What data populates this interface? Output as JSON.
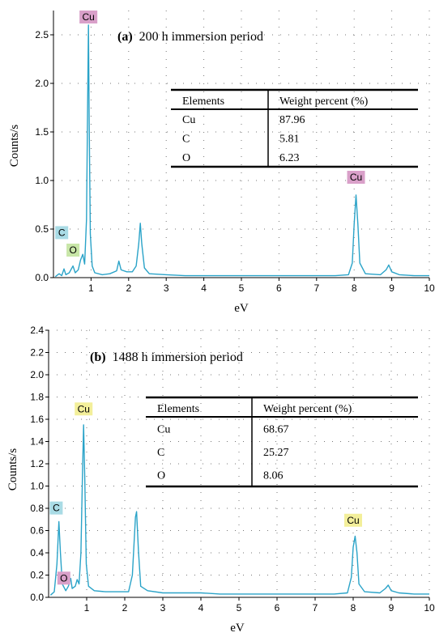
{
  "chart_data": [
    {
      "type": "line",
      "panel_label": "(a)",
      "title": "200 h immersion period",
      "xlabel": "eV",
      "ylabel": "Counts/s",
      "xlim": [
        0,
        10
      ],
      "ylim": [
        0,
        2.75
      ],
      "xticks": [
        1,
        2,
        3,
        4,
        5,
        6,
        7,
        8,
        9,
        10
      ],
      "yticks": [
        0.0,
        0.5,
        1.0,
        1.5,
        2.0,
        2.5
      ],
      "ytick_labels": [
        "0.0",
        "0.5",
        "1.0",
        "1.5",
        "2.0",
        "2.5"
      ],
      "line_color": "#2aa3c8",
      "spectrum": [
        [
          0.05,
          0.01
        ],
        [
          0.15,
          0.04
        ],
        [
          0.22,
          0.02
        ],
        [
          0.28,
          0.09
        ],
        [
          0.33,
          0.03
        ],
        [
          0.42,
          0.05
        ],
        [
          0.52,
          0.12
        ],
        [
          0.58,
          0.05
        ],
        [
          0.66,
          0.08
        ],
        [
          0.72,
          0.18
        ],
        [
          0.78,
          0.24
        ],
        [
          0.83,
          0.14
        ],
        [
          0.88,
          0.6
        ],
        [
          0.91,
          1.8
        ],
        [
          0.93,
          2.6
        ],
        [
          0.95,
          1.6
        ],
        [
          0.98,
          0.45
        ],
        [
          1.03,
          0.12
        ],
        [
          1.1,
          0.05
        ],
        [
          1.3,
          0.03
        ],
        [
          1.5,
          0.04
        ],
        [
          1.68,
          0.07
        ],
        [
          1.74,
          0.17
        ],
        [
          1.8,
          0.08
        ],
        [
          1.95,
          0.06
        ],
        [
          2.1,
          0.06
        ],
        [
          2.2,
          0.12
        ],
        [
          2.27,
          0.35
        ],
        [
          2.31,
          0.56
        ],
        [
          2.35,
          0.35
        ],
        [
          2.42,
          0.1
        ],
        [
          2.55,
          0.04
        ],
        [
          3.0,
          0.03
        ],
        [
          3.5,
          0.02
        ],
        [
          4.0,
          0.02
        ],
        [
          4.5,
          0.02
        ],
        [
          5.0,
          0.02
        ],
        [
          5.5,
          0.02
        ],
        [
          6.0,
          0.02
        ],
        [
          6.5,
          0.02
        ],
        [
          7.0,
          0.02
        ],
        [
          7.5,
          0.02
        ],
        [
          7.85,
          0.03
        ],
        [
          7.95,
          0.15
        ],
        [
          8.0,
          0.55
        ],
        [
          8.05,
          0.85
        ],
        [
          8.1,
          0.55
        ],
        [
          8.15,
          0.15
        ],
        [
          8.3,
          0.04
        ],
        [
          8.7,
          0.03
        ],
        [
          8.85,
          0.08
        ],
        [
          8.92,
          0.13
        ],
        [
          9.0,
          0.06
        ],
        [
          9.2,
          0.03
        ],
        [
          9.6,
          0.02
        ],
        [
          10.0,
          0.02
        ]
      ],
      "peak_labels": [
        {
          "text": "Cu",
          "x": 0.93,
          "y": 2.6,
          "bg": "#d9a0c9"
        },
        {
          "text": "C",
          "x": 0.22,
          "y": 0.38,
          "bg": "#a9dbe5"
        },
        {
          "text": "O",
          "x": 0.52,
          "y": 0.2,
          "bg": "#c8e6a8"
        },
        {
          "text": "Cu",
          "x": 8.05,
          "y": 0.95,
          "bg": "#d9a0c9"
        }
      ],
      "table": {
        "headers": [
          "Elements",
          "Weight percent (%)"
        ],
        "rows": [
          [
            "Cu",
            "87.96"
          ],
          [
            "C",
            "5.81"
          ],
          [
            "O",
            "6.23"
          ]
        ]
      }
    },
    {
      "type": "line",
      "panel_label": "(b)",
      "title": "1488 h immersion period",
      "xlabel": "eV",
      "ylabel": "Counts/s",
      "xlim": [
        0,
        10
      ],
      "ylim": [
        0,
        2.4
      ],
      "xticks": [
        1,
        2,
        3,
        4,
        5,
        6,
        7,
        8,
        9,
        10
      ],
      "yticks": [
        0.0,
        0.2,
        0.4,
        0.6,
        0.8,
        1.0,
        1.2,
        1.4,
        1.6,
        1.8,
        2.0,
        2.2,
        2.4
      ],
      "ytick_labels": [
        "0.0",
        "0.2",
        "0.4",
        "0.6",
        "0.8",
        "1.0",
        "1.2",
        "1.4",
        "1.6",
        "1.8",
        "2.0",
        "2.2",
        "2.4"
      ],
      "line_color": "#2aa3c8",
      "spectrum": [
        [
          0.05,
          0.02
        ],
        [
          0.15,
          0.05
        ],
        [
          0.22,
          0.3
        ],
        [
          0.27,
          0.68
        ],
        [
          0.31,
          0.4
        ],
        [
          0.36,
          0.12
        ],
        [
          0.45,
          0.06
        ],
        [
          0.52,
          0.1
        ],
        [
          0.58,
          0.17
        ],
        [
          0.62,
          0.08
        ],
        [
          0.7,
          0.1
        ],
        [
          0.75,
          0.16
        ],
        [
          0.8,
          0.12
        ],
        [
          0.85,
          0.4
        ],
        [
          0.89,
          1.1
        ],
        [
          0.92,
          1.55
        ],
        [
          0.95,
          1.05
        ],
        [
          0.99,
          0.3
        ],
        [
          1.05,
          0.1
        ],
        [
          1.2,
          0.06
        ],
        [
          1.5,
          0.05
        ],
        [
          1.8,
          0.05
        ],
        [
          2.1,
          0.05
        ],
        [
          2.2,
          0.2
        ],
        [
          2.28,
          0.72
        ],
        [
          2.31,
          0.77
        ],
        [
          2.36,
          0.42
        ],
        [
          2.42,
          0.1
        ],
        [
          2.6,
          0.06
        ],
        [
          3.0,
          0.04
        ],
        [
          3.5,
          0.04
        ],
        [
          4.0,
          0.04
        ],
        [
          4.5,
          0.03
        ],
        [
          5.0,
          0.03
        ],
        [
          5.5,
          0.03
        ],
        [
          6.0,
          0.03
        ],
        [
          6.5,
          0.03
        ],
        [
          7.0,
          0.03
        ],
        [
          7.5,
          0.03
        ],
        [
          7.85,
          0.04
        ],
        [
          7.95,
          0.18
        ],
        [
          8.0,
          0.45
        ],
        [
          8.05,
          0.55
        ],
        [
          8.1,
          0.4
        ],
        [
          8.15,
          0.12
        ],
        [
          8.3,
          0.05
        ],
        [
          8.7,
          0.04
        ],
        [
          8.85,
          0.08
        ],
        [
          8.92,
          0.11
        ],
        [
          9.0,
          0.06
        ],
        [
          9.2,
          0.04
        ],
        [
          9.6,
          0.03
        ],
        [
          10.0,
          0.03
        ]
      ],
      "peak_labels": [
        {
          "text": "Cu",
          "x": 0.92,
          "y": 1.62,
          "bg": "#f3ef9a"
        },
        {
          "text": "C",
          "x": 0.2,
          "y": 0.73,
          "bg": "#a9dbe5"
        },
        {
          "text": "O",
          "x": 0.4,
          "y": 0.1,
          "bg": "#d9a0c9"
        },
        {
          "text": "Cu",
          "x": 8.0,
          "y": 0.62,
          "bg": "#f3ef9a"
        }
      ],
      "table": {
        "headers": [
          "Elements",
          "Weight percent (%)"
        ],
        "rows": [
          [
            "Cu",
            "68.67"
          ],
          [
            "C",
            "25.27"
          ],
          [
            "O",
            "8.06"
          ]
        ]
      }
    }
  ]
}
